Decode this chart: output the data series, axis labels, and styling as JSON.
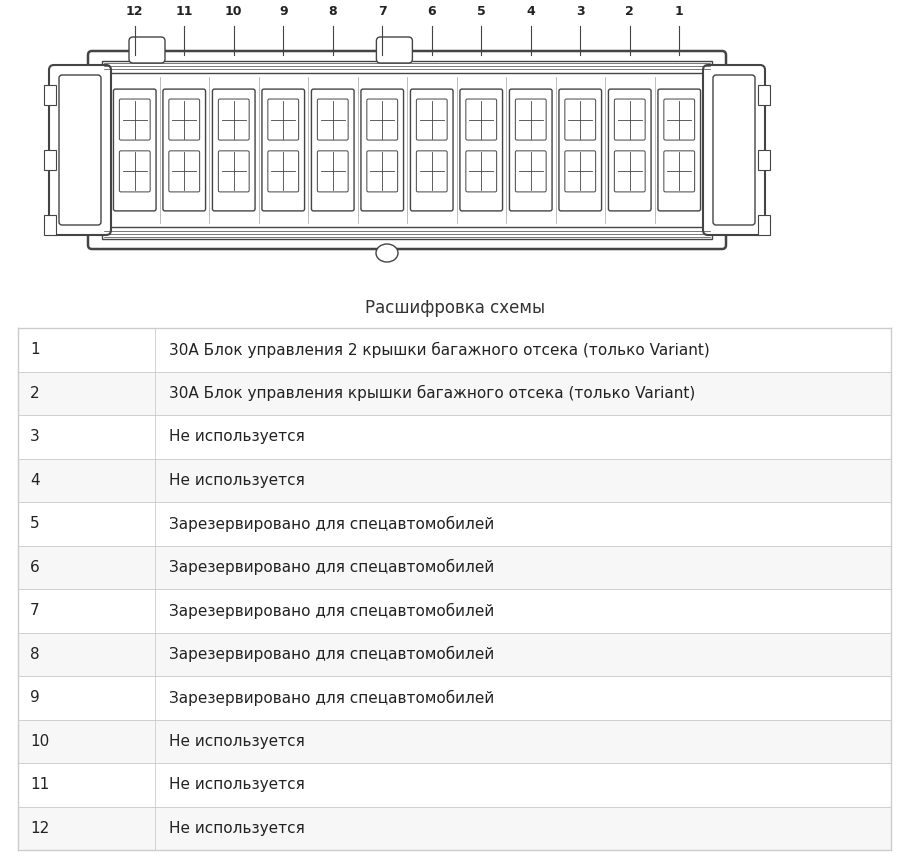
{
  "title": "Расшифровка схемы",
  "background_color": "#ffffff",
  "table_border_color": "#cccccc",
  "rows": [
    {
      "num": "1",
      "desc": "30А Блок управления 2 крышки багажного отсека (только Variant)"
    },
    {
      "num": "2",
      "desc": "30А Блок управления крышки багажного отсека (только Variant)"
    },
    {
      "num": "3",
      "desc": "Не используется"
    },
    {
      "num": "4",
      "desc": "Не используется"
    },
    {
      "num": "5",
      "desc": "Зарезервировано для спецавтомобилей"
    },
    {
      "num": "6",
      "desc": "Зарезервировано для спецавтомобилей"
    },
    {
      "num": "7",
      "desc": "Зарезервировано для спецавтомобилей"
    },
    {
      "num": "8",
      "desc": "Зарезервировано для спецавтомобилей"
    },
    {
      "num": "9",
      "desc": "Зарезервировано для спецавтомобилей"
    },
    {
      "num": "10",
      "desc": "Не используется"
    },
    {
      "num": "11",
      "desc": "Не используется"
    },
    {
      "num": "12",
      "desc": "Не используется"
    }
  ],
  "font_size": 11,
  "num_labels": [
    "12",
    "11",
    "10",
    "9",
    "8",
    "7",
    "6",
    "5",
    "4",
    "3",
    "2",
    "1"
  ],
  "lc": "#444444"
}
